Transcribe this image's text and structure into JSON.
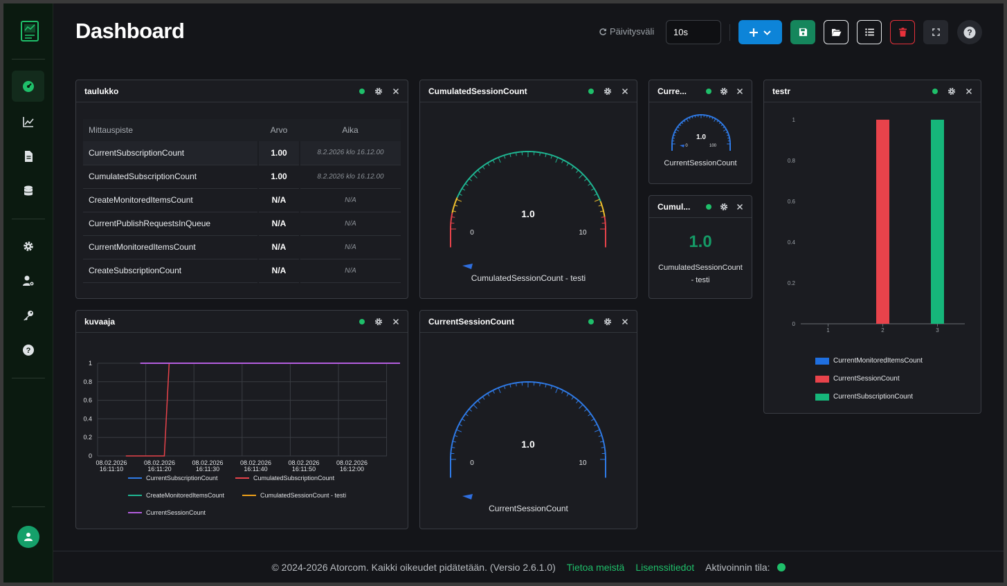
{
  "header": {
    "title": "Dashboard",
    "refresh_label": "Päivitysväli",
    "refresh_value": "10s"
  },
  "icons": [
    "logo-icon",
    "dashboard-icon",
    "chart-line-icon",
    "document-icon",
    "database-icon",
    "gear-icon",
    "user-gear-icon",
    "key-icon",
    "help-icon",
    "user-icon",
    "refresh-icon",
    "plus-icon",
    "chevron-down-icon",
    "save-icon",
    "folder-open-icon",
    "list-icon",
    "trash-icon",
    "fullscreen-icon",
    "question-icon",
    "close-icon"
  ],
  "colors": {
    "accent": "#1fbf6a",
    "primary": "#0d84d8",
    "danger": "#e8313b",
    "save": "#15865c"
  },
  "table_widget": {
    "title": "taulukko",
    "headers": [
      "Mittauspiste",
      "Arvo",
      "Aika"
    ],
    "rows": [
      {
        "name": "CurrentSubscriptionCount",
        "value": "1.00",
        "time": "8.2.2026 klo 16.12.00"
      },
      {
        "name": "CumulatedSubscriptionCount",
        "value": "1.00",
        "time": "8.2.2026 klo 16.12.00"
      },
      {
        "name": "CreateMonitoredItemsCount",
        "value": "N/A",
        "time": "N/A"
      },
      {
        "name": "CurrentPublishRequestsInQueue",
        "value": "N/A",
        "time": "N/A"
      },
      {
        "name": "CurrentMonitoredItemsCount",
        "value": "N/A",
        "time": "N/A"
      },
      {
        "name": "CreateSubscriptionCount",
        "value": "N/A",
        "time": "N/A"
      }
    ]
  },
  "gauge_cumulated": {
    "title": "CumulatedSessionCount",
    "value": "1.0",
    "min": "0",
    "max": "10",
    "label": "CumulatedSessionCount - testi",
    "value_num": 1,
    "max_num": 10
  },
  "gauge_small": {
    "title": "Curre...",
    "value": "1.0",
    "min": "0",
    "max": "100",
    "label": "CurrentSessionCount",
    "value_num": 1,
    "max_num": 100
  },
  "value_widget": {
    "title": "Cumul...",
    "value": "1.0",
    "label_line1": "CumulatedSessionCount",
    "label_line2": "- testi"
  },
  "gauge_current": {
    "title": "CurrentSessionCount",
    "value": "1.0",
    "min": "0",
    "max": "10",
    "label": "CurrentSessionCount",
    "value_num": 1,
    "max_num": 10
  },
  "line_widget": {
    "title": "kuvaaja"
  },
  "bar_widget": {
    "title": "testr"
  },
  "chart_data": [
    {
      "type": "line",
      "title": "",
      "xlabel": "",
      "ylabel": "",
      "x_ticks": [
        [
          "08.02.2026",
          "16:11:10"
        ],
        [
          "08.02.2026",
          "16:11:20"
        ],
        [
          "08.02.2026",
          "16:11:30"
        ],
        [
          "08.02.2026",
          "16:11:40"
        ],
        [
          "08.02.2026",
          "16:11:50"
        ],
        [
          "08.02.2026",
          "16:12:00"
        ]
      ],
      "y_ticks": [
        "0",
        "0.2",
        "0.4",
        "0.6",
        "0.8",
        "1"
      ],
      "ylim": [
        0,
        1
      ],
      "grid": true,
      "legend": "bottom",
      "series": [
        {
          "name": "CurrentSubscriptionCount",
          "color": "#2f7be8",
          "points": [
            [
              0,
              0
            ],
            [
              0,
              0
            ]
          ]
        },
        {
          "name": "CumulatedSubscriptionCount",
          "color": "#e8434b",
          "points": [
            [
              "16:11:20",
              0
            ],
            [
              "16:11:20",
              0
            ]
          ]
        },
        {
          "name": "CreateMonitoredItemsCount",
          "color": "#1fb894",
          "points": [
            [
              0,
              0
            ],
            [
              0,
              0
            ]
          ]
        },
        {
          "name": "CumulatedSessionCount - testi",
          "color": "#f0a219",
          "points": [
            [
              0,
              0
            ],
            [
              0,
              0
            ]
          ]
        },
        {
          "name": "CurrentSessionCount",
          "color": "#b55ee0",
          "points": [
            [
              "16:11:16",
              1
            ],
            [
              "16:12:10",
              1
            ]
          ]
        }
      ],
      "line_values": {
        "CumulatedSubscriptionCount": {
          "x": [
            "16:11:13",
            "16:11:21",
            "16:11:22"
          ],
          "y": [
            0,
            0,
            1
          ]
        },
        "CurrentSessionCount": {
          "x": [
            "16:11:16",
            "16:12:10"
          ],
          "y": [
            1,
            1
          ]
        }
      }
    },
    {
      "type": "bar",
      "title": "",
      "categories": [
        "1",
        "2",
        "3"
      ],
      "y_ticks": [
        "0",
        "0.2",
        "0.4",
        "0.6",
        "0.8",
        "1"
      ],
      "ylim": [
        0,
        1
      ],
      "legend": "bottom",
      "series": [
        {
          "name": "CurrentMonitoredItemsCount",
          "color": "#1f6fe0",
          "values": [
            0,
            0,
            0
          ]
        },
        {
          "name": "CurrentSessionCount",
          "color": "#e8434b",
          "values": [
            0,
            1,
            0
          ]
        },
        {
          "name": "CurrentSubscriptionCount",
          "color": "#16b67a",
          "values": [
            0,
            0,
            1
          ]
        }
      ]
    }
  ],
  "footer": {
    "copyright": "© 2024-2026 Atorcom. Kaikki oikeudet pidätetään. (Versio 2.6.1.0)",
    "about": "Tietoa meistä",
    "license": "Lisenssitiedot",
    "activation": "Aktivoinnin tila:"
  }
}
